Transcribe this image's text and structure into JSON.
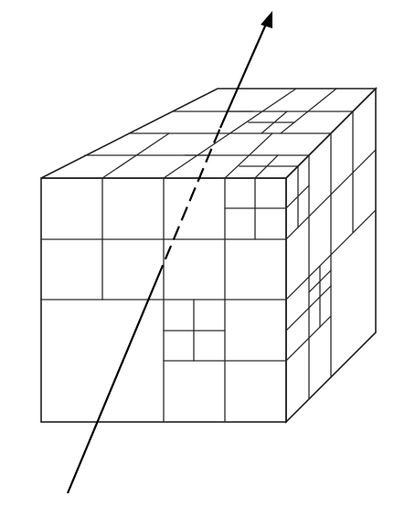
{
  "figure": {
    "subject": "octree-subdivided-cube",
    "colors": {
      "background": "#ffffff",
      "grid_lines": "#2a2a2a",
      "ray": "#000000"
    },
    "icons": {
      "arrowhead": "arrow-up-right-icon"
    }
  }
}
